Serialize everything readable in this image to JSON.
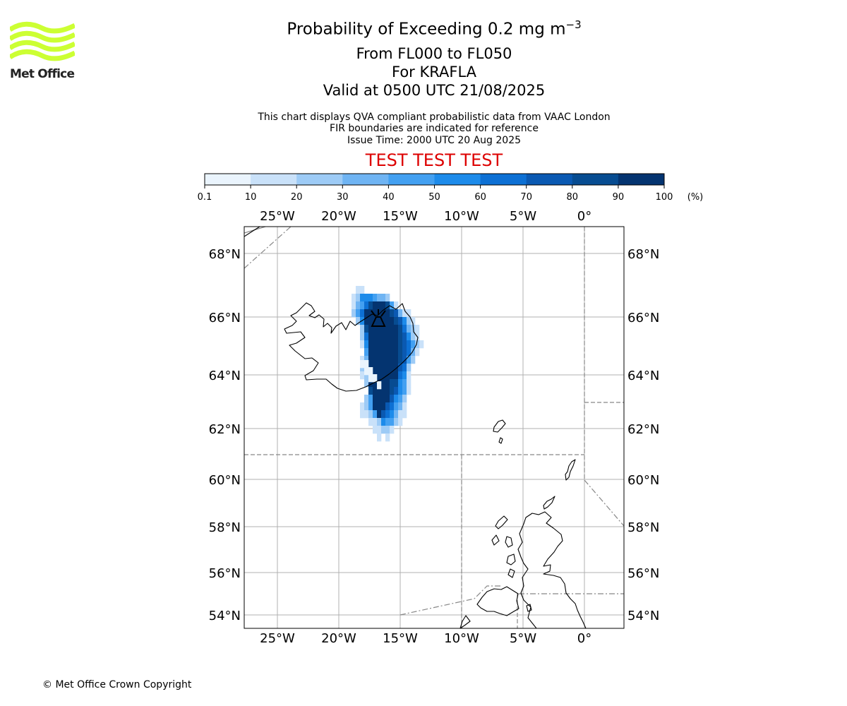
{
  "logo": {
    "text": "Met Office",
    "colors": {
      "waves": "#ccff33",
      "text": "#222222"
    }
  },
  "header": {
    "title_main": "Probability of Exceeding 0.2 mg m",
    "title_exponent": "−3",
    "flight_levels": "From FL000 to FL050",
    "volcano": "For KRAFLA",
    "valid_time": "Valid at 0500 UTC 21/08/2025"
  },
  "info": {
    "line1": "This chart displays QVA compliant probabilistic data from VAAC London",
    "line2": "FIR boundaries are indicated for reference",
    "line3": "Issue Time: 2000 UTC 20 Aug 2025"
  },
  "test_banner": {
    "text": "TEST TEST TEST",
    "color": "#dd0000"
  },
  "colorbar": {
    "ticks": [
      "0.1",
      "10",
      "20",
      "30",
      "40",
      "50",
      "60",
      "70",
      "80",
      "90",
      "100"
    ],
    "unit": "(%)",
    "colors": [
      "#eaf4fd",
      "#c9e1f9",
      "#9dcbf6",
      "#6fb4f3",
      "#43a0f1",
      "#1d8bea",
      "#0d70d4",
      "#0a59b2",
      "#074c91",
      "#043470"
    ]
  },
  "map": {
    "lon_labels": [
      "25°W",
      "20°W",
      "15°W",
      "10°W",
      "5°W",
      "0°"
    ],
    "lat_labels": [
      "68°N",
      "66°N",
      "64°N",
      "62°N",
      "60°N",
      "58°N",
      "56°N",
      "54°N"
    ],
    "colors": {
      "grid": "#b0b0b0",
      "coast": "#000000",
      "fir": "#888888"
    },
    "volcano_icon": "volcano-icon"
  },
  "footer": {
    "copyright": "© Met Office Crown Copyright"
  }
}
